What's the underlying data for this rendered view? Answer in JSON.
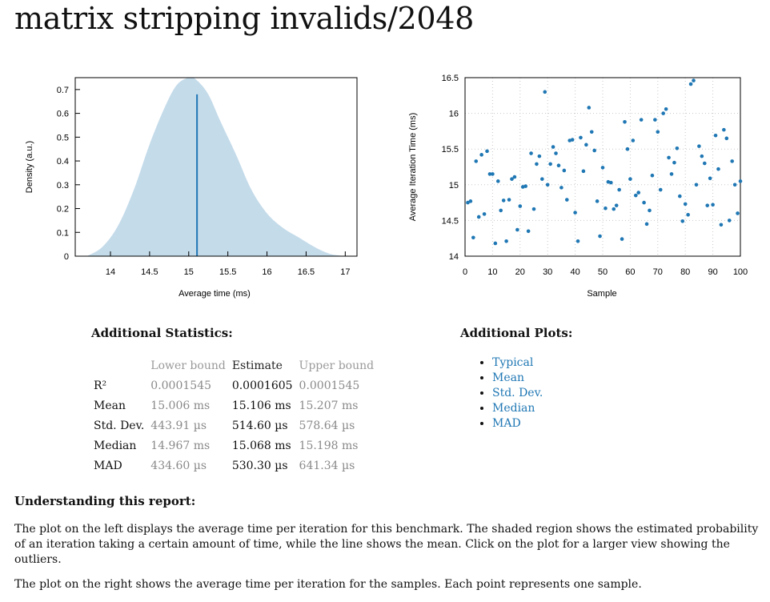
{
  "title": "matrix stripping invalids/2048",
  "pdf_plot": {
    "ylabel": "Density (a.u.)",
    "xlabel": "Average time (ms)",
    "x_ticks": [
      "14",
      "14.5",
      "15",
      "15.5",
      "16",
      "16.5",
      "17"
    ],
    "y_ticks": [
      "0",
      "0.1",
      "0.2",
      "0.3",
      "0.4",
      "0.5",
      "0.6",
      "0.7"
    ],
    "fill_color": "#c4dbea",
    "line_color": "#1f77b4"
  },
  "chart_data": [
    {
      "type": "area",
      "xlabel": "Average time (ms)",
      "ylabel": "Density (a.u.)",
      "xlim": [
        13.55,
        17.15
      ],
      "ylim": [
        0,
        0.75
      ],
      "x": [
        13.7,
        13.9,
        14.1,
        14.3,
        14.5,
        14.7,
        14.85,
        15.0,
        15.1,
        15.25,
        15.4,
        15.6,
        15.8,
        16.0,
        16.2,
        16.4,
        16.6,
        16.8,
        17.0
      ],
      "y": [
        0.0,
        0.04,
        0.13,
        0.28,
        0.47,
        0.63,
        0.72,
        0.75,
        0.74,
        0.68,
        0.57,
        0.43,
        0.28,
        0.18,
        0.12,
        0.08,
        0.04,
        0.01,
        0.0
      ],
      "mean": 15.106,
      "mean_line_height": 0.68
    },
    {
      "type": "scatter",
      "xlabel": "Sample",
      "ylabel": "Average Iteration Time (ms)",
      "xlim": [
        0,
        100
      ],
      "ylim": [
        14,
        16.5
      ],
      "x_ticks": [
        "0",
        "10",
        "20",
        "30",
        "40",
        "50",
        "60",
        "70",
        "80",
        "90",
        "100"
      ],
      "y_ticks": [
        "14",
        "14.5",
        "15",
        "15.5",
        "16",
        "16.5"
      ],
      "x": [
        1,
        2,
        3,
        4,
        5,
        6,
        7,
        8,
        9,
        10,
        11,
        12,
        13,
        14,
        15,
        16,
        17,
        18,
        19,
        20,
        21,
        22,
        23,
        24,
        25,
        26,
        27,
        28,
        29,
        30,
        31,
        32,
        33,
        34,
        35,
        36,
        37,
        38,
        39,
        40,
        41,
        42,
        43,
        44,
        45,
        46,
        47,
        48,
        49,
        50,
        51,
        52,
        53,
        54,
        55,
        56,
        57,
        58,
        59,
        60,
        61,
        62,
        63,
        64,
        65,
        66,
        67,
        68,
        69,
        70,
        71,
        72,
        73,
        74,
        75,
        76,
        77,
        78,
        79,
        80,
        81,
        82,
        83,
        84,
        85,
        86,
        87,
        88,
        89,
        90,
        91,
        92,
        93,
        94,
        95,
        96,
        97,
        98,
        99,
        100
      ],
      "y": [
        14.75,
        14.77,
        14.26,
        15.33,
        14.55,
        15.42,
        14.59,
        15.47,
        15.15,
        15.15,
        14.18,
        15.05,
        14.64,
        14.78,
        14.21,
        14.79,
        15.08,
        15.11,
        14.37,
        14.7,
        14.97,
        14.98,
        14.35,
        15.44,
        14.66,
        15.29,
        15.4,
        15.08,
        16.3,
        15.0,
        15.29,
        15.53,
        15.44,
        15.27,
        14.96,
        15.2,
        14.79,
        15.62,
        15.63,
        14.61,
        14.21,
        15.66,
        15.19,
        15.56,
        16.08,
        15.74,
        15.48,
        14.77,
        14.28,
        15.24,
        14.67,
        15.04,
        15.03,
        14.66,
        14.71,
        14.93,
        14.24,
        15.88,
        15.5,
        15.08,
        15.62,
        14.85,
        14.89,
        15.91,
        14.75,
        14.45,
        14.64,
        15.13,
        15.91,
        15.74,
        14.93,
        16.0,
        16.06,
        15.38,
        15.15,
        15.31,
        15.51,
        14.84,
        14.49,
        14.73,
        14.58,
        16.41,
        16.46,
        15.0,
        15.54,
        15.4,
        15.3,
        14.71,
        15.09,
        14.72,
        15.69,
        15.22,
        14.44,
        15.77,
        15.65,
        14.5,
        15.33,
        15.0,
        14.6,
        15.05
      ]
    }
  ],
  "scatter_plot": {
    "ylabel": "Average Iteration Time (ms)",
    "xlabel": "Sample",
    "point_color": "#1f77b4"
  },
  "additional_statistics": {
    "title": "Additional Statistics:",
    "headers": [
      "",
      "Lower bound",
      "Estimate",
      "Upper bound"
    ],
    "rows": [
      {
        "name": "R²",
        "lb": "0.0001545",
        "est": "0.0001605",
        "ub": "0.0001545"
      },
      {
        "name": "Mean",
        "lb": "15.006 ms",
        "est": "15.106 ms",
        "ub": "15.207 ms"
      },
      {
        "name": "Std. Dev.",
        "lb": "443.91 µs",
        "est": "514.60 µs",
        "ub": "578.64 µs"
      },
      {
        "name": "Median",
        "lb": "14.967 ms",
        "est": "15.068 ms",
        "ub": "15.198 ms"
      },
      {
        "name": "MAD",
        "lb": "434.60 µs",
        "est": "530.30 µs",
        "ub": "641.34 µs"
      }
    ]
  },
  "additional_plots": {
    "title": "Additional Plots:",
    "links": [
      "Typical",
      "Mean",
      "Std. Dev.",
      "Median",
      "MAD"
    ]
  },
  "understanding": {
    "title": "Understanding this report:",
    "p1": "The plot on the left displays the average time per iteration for this benchmark. The shaded region shows the estimated probability of an iteration taking a certain amount of time, while the line shows the mean. Click on the plot for a larger view showing the outliers.",
    "p2": "The plot on the right shows the average time per iteration for the samples. Each point represents one sample."
  }
}
